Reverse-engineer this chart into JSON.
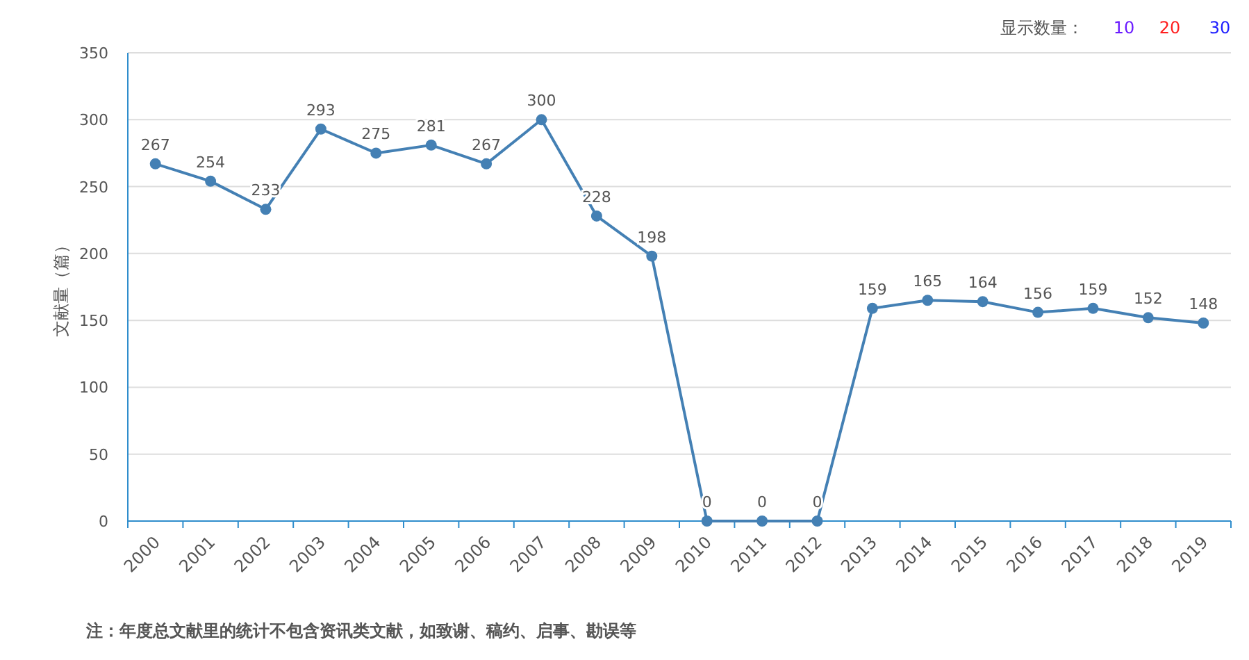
{
  "chart_data": {
    "type": "line",
    "ylabel": "文献量（篇）",
    "categories": [
      "2000",
      "2001",
      "2002",
      "2003",
      "2004",
      "2005",
      "2006",
      "2007",
      "2008",
      "2009",
      "2010",
      "2011",
      "2012",
      "2013",
      "2014",
      "2015",
      "2016",
      "2017",
      "2018",
      "2019"
    ],
    "values": [
      267,
      254,
      233,
      293,
      275,
      281,
      267,
      300,
      228,
      198,
      0,
      0,
      0,
      159,
      165,
      164,
      156,
      159,
      152,
      148
    ],
    "color": "#4480b4",
    "marker": "circle",
    "data_labels": true,
    "grid": "y",
    "ylim": [
      0,
      350
    ],
    "yticks": [
      0,
      50,
      100,
      150,
      200,
      250,
      300,
      350
    ],
    "annotations": [
      "显示数量：",
      "10",
      "20",
      "30",
      "注：年度总文献里的统计不包含资讯类文献，如致谢、稿约、启事、勘误等"
    ]
  }
}
